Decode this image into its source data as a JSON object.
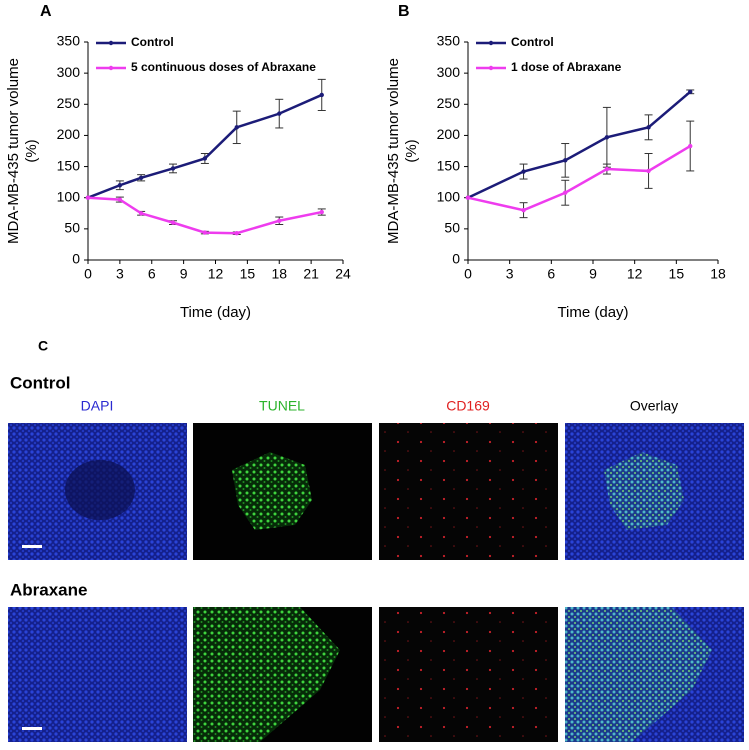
{
  "chart_data": [
    {
      "type": "line",
      "panel": "A",
      "xlabel": "Time (day)",
      "ylabel": [
        "MDA-MB-435 tumor volume",
        "(%)"
      ],
      "x": [
        0,
        3,
        5,
        8,
        11,
        14,
        18,
        22
      ],
      "xlim": [
        0,
        24
      ],
      "xticks": [
        0,
        3,
        6,
        9,
        12,
        15,
        18,
        21,
        24
      ],
      "ylim": [
        0,
        350
      ],
      "yticks": [
        0,
        50,
        100,
        150,
        200,
        250,
        300,
        350
      ],
      "series": [
        {
          "name": "Control",
          "color": "#1c1c78",
          "values": [
            100,
            120,
            132,
            147,
            163,
            213,
            235,
            265
          ],
          "errors": [
            0,
            7,
            5,
            7,
            8,
            26,
            23,
            25
          ]
        },
        {
          "name": "5 continuous doses of Abraxane",
          "color": "#ee3cee",
          "values": [
            100,
            97,
            75,
            60,
            44,
            43,
            63,
            77
          ],
          "errors": [
            0,
            4,
            3,
            3,
            2,
            2,
            6,
            5
          ]
        }
      ]
    },
    {
      "type": "line",
      "panel": "B",
      "xlabel": "Time (day)",
      "ylabel": [
        "MDA-MB-435 tumor volume",
        "(%)"
      ],
      "x": [
        0,
        4,
        7,
        10,
        13,
        16
      ],
      "xlim": [
        0,
        18
      ],
      "xticks": [
        0,
        3,
        6,
        9,
        12,
        15,
        18
      ],
      "ylim": [
        0,
        350
      ],
      "yticks": [
        0,
        50,
        100,
        150,
        200,
        250,
        300,
        350
      ],
      "series": [
        {
          "name": "Control",
          "color": "#1c1c78",
          "values": [
            100,
            142,
            160,
            197,
            213,
            270
          ],
          "errors": [
            0,
            12,
            27,
            48,
            20,
            3
          ]
        },
        {
          "name": "1 dose of Abraxane",
          "color": "#ee3cee",
          "values": [
            100,
            80,
            108,
            146,
            143,
            183
          ],
          "errors": [
            0,
            12,
            20,
            8,
            28,
            40
          ]
        }
      ]
    }
  ],
  "figure_c": {
    "panel": "C",
    "columns": [
      "DAPI",
      "TUNEL",
      "CD169",
      "Overlay"
    ],
    "rows": [
      "Control",
      "Abraxane"
    ]
  }
}
